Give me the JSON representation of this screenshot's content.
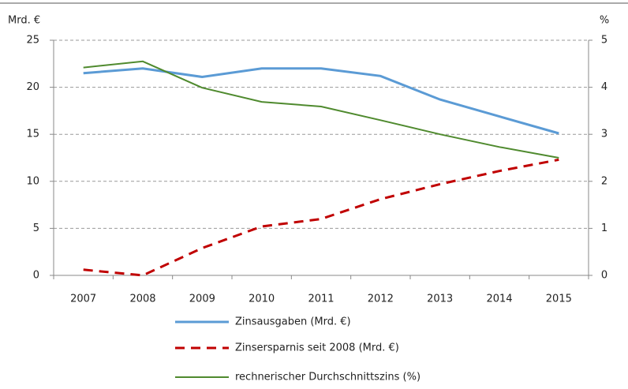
{
  "chart_data": {
    "type": "line",
    "y_label": "Mrd. €",
    "y2_label": "%",
    "categories": [
      "2007",
      "2008",
      "2009",
      "2010",
      "2011",
      "2012",
      "2013",
      "2014",
      "2015"
    ],
    "series": [
      {
        "name": "Zinsausgaben (Mrd. €)",
        "color": "#5b9bd5",
        "dash": false,
        "width": 3,
        "values": [
          21.5,
          22.0,
          21.1,
          22.0,
          22.0,
          21.2,
          18.7,
          16.9,
          15.1
        ]
      },
      {
        "name": "Zinsersparnis seit 2008 (Mrd. €)",
        "color": "#c00000",
        "dash": true,
        "width": 3,
        "values": [
          0.6,
          0,
          2.9,
          5.2,
          6.0,
          8.1,
          9.7,
          11.1,
          12.3
        ]
      },
      {
        "name": "rechnerischer Durchschnittszins (%)",
        "color": "#4f8a2e",
        "dash": false,
        "width": 2,
        "axis": "y2",
        "values": [
          4.42,
          4.55,
          3.99,
          3.69,
          3.59,
          3.3,
          3.0,
          2.73,
          2.5
        ]
      }
    ],
    "ylim": [
      0,
      25
    ],
    "yticks": [
      0,
      5,
      10,
      15,
      20,
      25
    ],
    "y2lim": [
      0,
      5
    ],
    "y2ticks": [
      0,
      1,
      2,
      3,
      4,
      5
    ],
    "grid": true,
    "legend": "bottom"
  }
}
